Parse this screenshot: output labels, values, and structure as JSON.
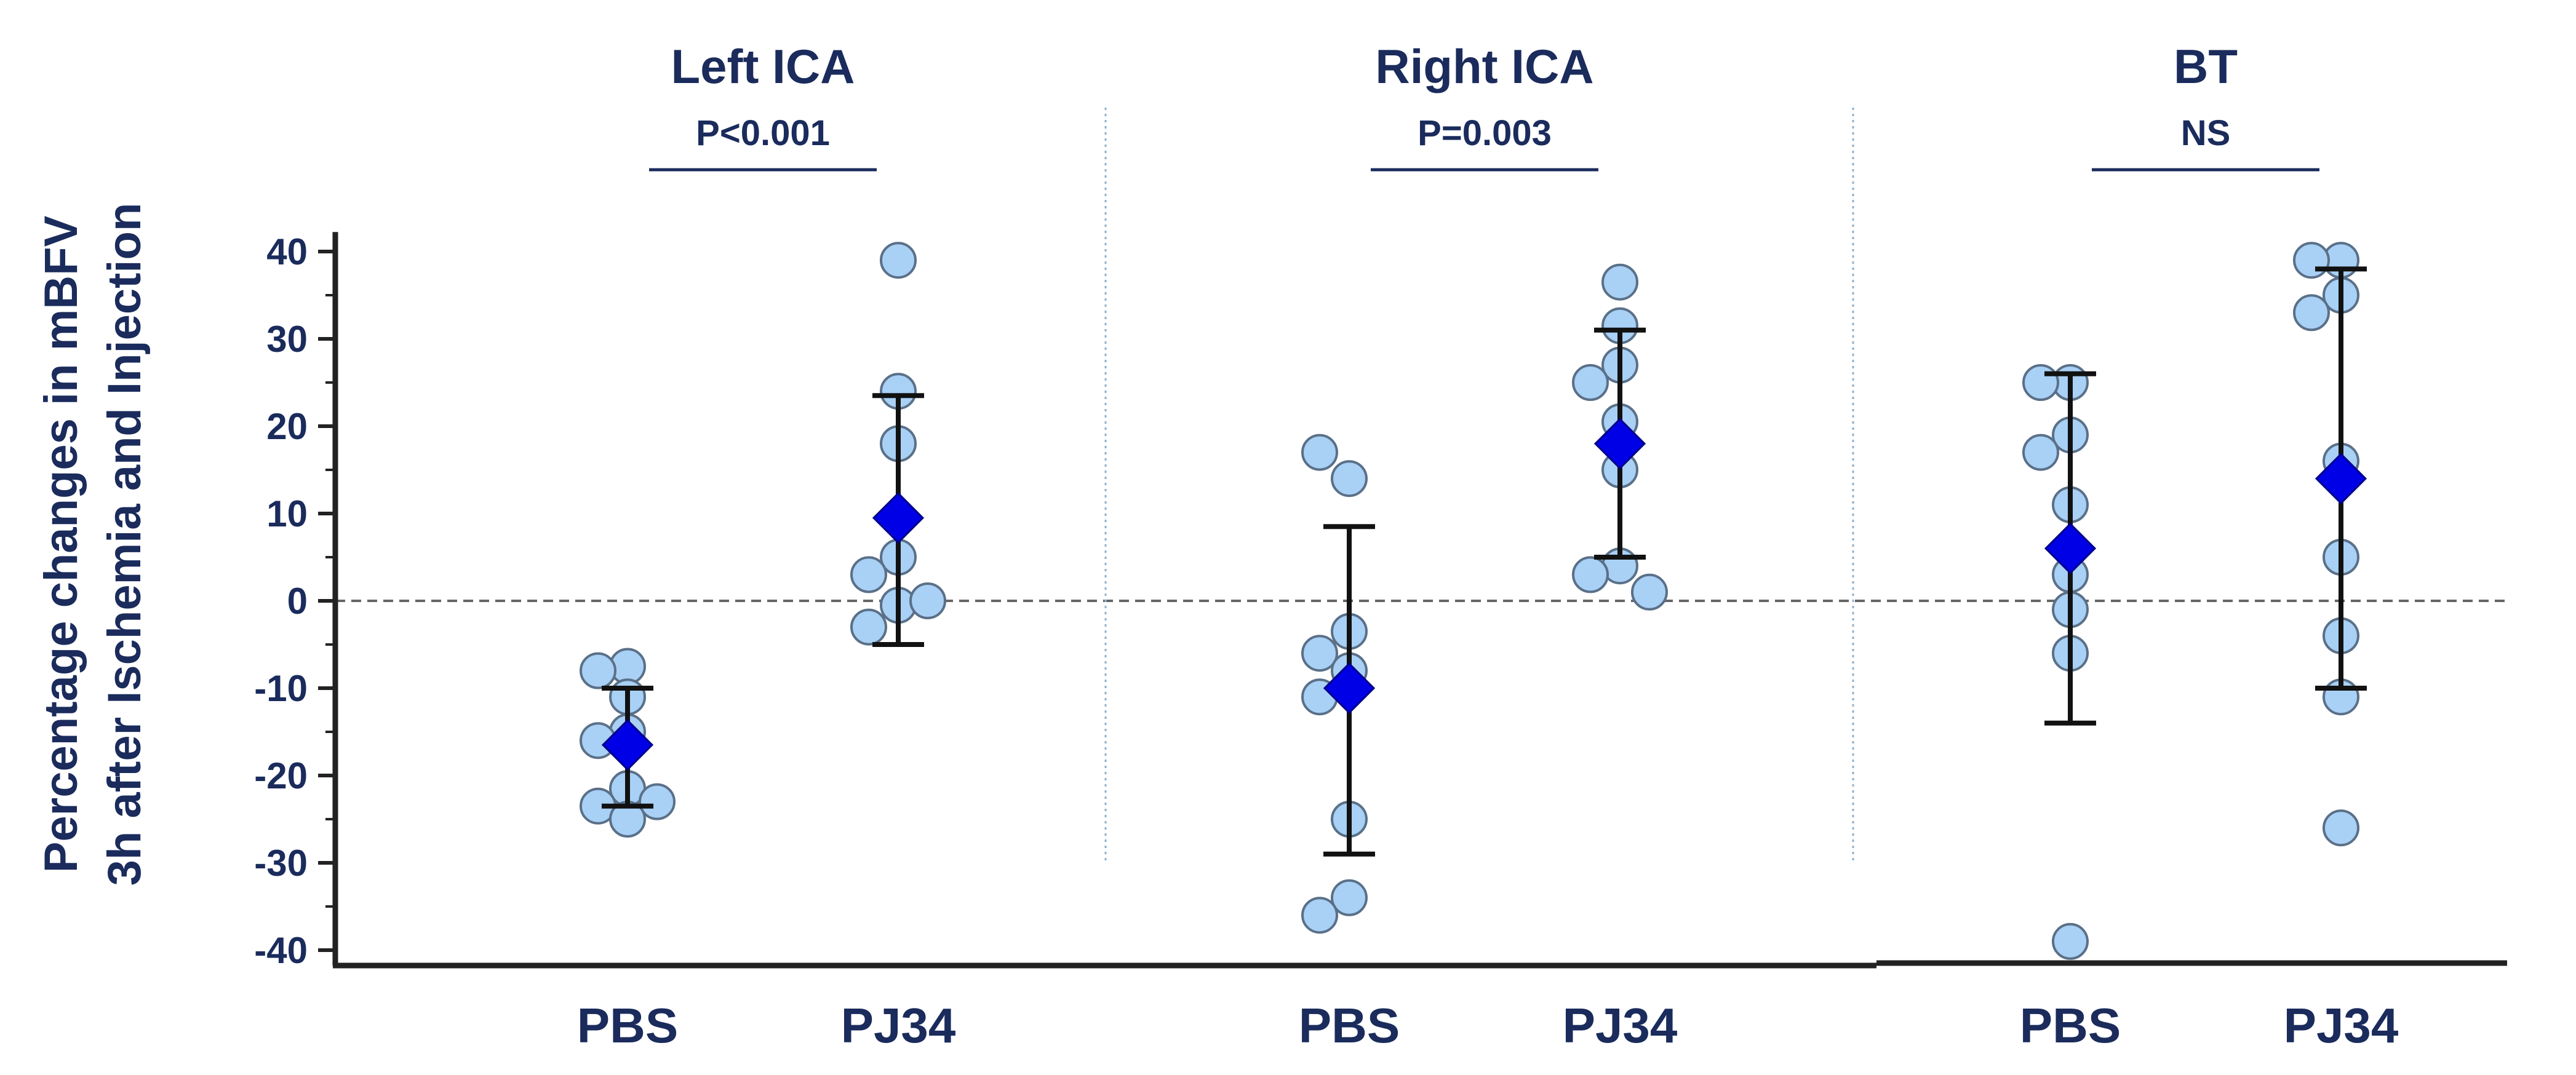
{
  "chart_data": {
    "type": "scatter",
    "ylabel": [
      "Percentage changes in mBFV",
      "3h after Ischemia and Injection"
    ],
    "ylim": [
      -42,
      44
    ],
    "yticks": [
      40,
      30,
      20,
      10,
      0,
      -10,
      -20,
      -30,
      -40
    ],
    "yticklabels": [
      "40",
      "30",
      "20",
      "10",
      "0",
      "-10",
      "-20",
      "-30",
      "-40"
    ],
    "reference_line": 0,
    "groups": [
      {
        "title": "Left ICA",
        "significance": "P<0.001",
        "conditions": [
          {
            "label": "PBS",
            "points": [
              -7.5,
              -8,
              -11,
              -15,
              -16,
              -21.5,
              -23.5,
              -23,
              -25
            ],
            "mean": -16.5,
            "error_upper": -10,
            "error_lower": -23.5
          },
          {
            "label": "PJ34",
            "points": [
              39,
              24,
              18,
              5,
              3,
              -0.5,
              0,
              -3
            ],
            "mean": 9.5,
            "error_upper": 23.5,
            "error_lower": -5
          }
        ]
      },
      {
        "title": "Right ICA",
        "significance": "P=0.003",
        "conditions": [
          {
            "label": "PBS",
            "points": [
              14,
              17,
              -3.5,
              -6,
              -8,
              -11,
              -25,
              -34,
              -36
            ],
            "mean": -10,
            "error_upper": 8.5,
            "error_lower": -29
          },
          {
            "label": "PJ34",
            "points": [
              36.5,
              31.5,
              27,
              25,
              20.5,
              15,
              4,
              3,
              1
            ],
            "mean": 18,
            "error_upper": 31,
            "error_lower": 5
          }
        ]
      },
      {
        "title": "BT",
        "significance": "NS",
        "conditions": [
          {
            "label": "PBS",
            "points": [
              25,
              25,
              19,
              17,
              11,
              3,
              -1,
              -6,
              -39
            ],
            "mean": 6,
            "error_upper": 26,
            "error_lower": -14
          },
          {
            "label": "PJ34",
            "points": [
              39,
              39,
              35,
              33,
              16,
              5,
              -4,
              -11,
              -26
            ],
            "mean": 14,
            "error_upper": 38,
            "error_lower": -10
          }
        ]
      }
    ],
    "colors": {
      "point_fill": "#a9d0f5",
      "point_stroke": "#5a7088",
      "mean_marker": "#0000e6",
      "error_bar": "#111111",
      "text": "#1a2b5c",
      "axis": "#222222",
      "divider": "#8fb3cc",
      "reference_line": "#666666"
    }
  }
}
